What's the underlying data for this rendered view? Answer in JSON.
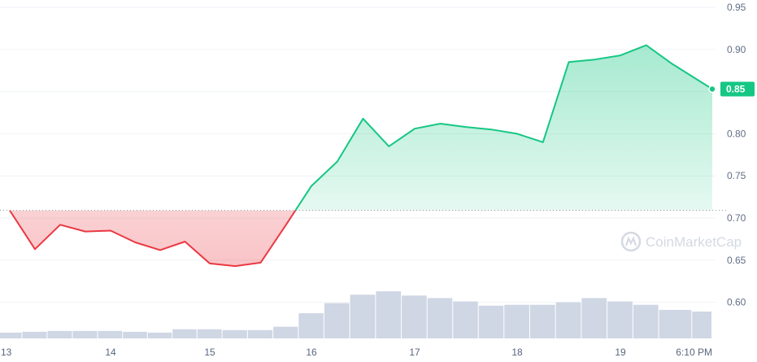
{
  "chart_data": {
    "type": "line",
    "title": "",
    "xlabel": "",
    "ylabel": "",
    "ylim": [
      0.55,
      0.96
    ],
    "y_ticks": [
      "0.95",
      "0.90",
      "0.85",
      "0.80",
      "0.75",
      "0.70",
      "0.65",
      "0.60"
    ],
    "x_ticks": [
      "13",
      "14",
      "15",
      "16",
      "17",
      "18",
      "19",
      "6:10 PM"
    ],
    "baseline": 0.709,
    "current_price": "0.85",
    "watermark": "CoinMarketCap",
    "grid": true,
    "colors": {
      "up": "#16c784",
      "down": "#ea3943",
      "volume": "#cfd6e4"
    },
    "x": [
      "13 00:00",
      "13 06:00",
      "13 12:00",
      "13 18:00",
      "14 00:00",
      "14 06:00",
      "14 12:00",
      "14 18:00",
      "15 00:00",
      "15 06:00",
      "15 12:00",
      "15 18:00",
      "16 00:00",
      "16 06:00",
      "16 12:00",
      "16 18:00",
      "17 00:00",
      "17 06:00",
      "17 12:00",
      "17 18:00",
      "18 00:00",
      "18 06:00",
      "18 12:00",
      "18 18:00",
      "19 00:00",
      "19 06:00",
      "19 12:00",
      "19 18:00"
    ],
    "series": [
      {
        "values": [
          0.709,
          0.663,
          0.692,
          0.684,
          0.685,
          0.671,
          0.662,
          0.672,
          0.646,
          0.643,
          0.647,
          0.692,
          0.738,
          0.767,
          0.818,
          0.785,
          0.806,
          0.812,
          0.808,
          0.805,
          0.8,
          0.79,
          0.885,
          0.888,
          0.893,
          0.905,
          0.883,
          0.853
        ]
      },
      {
        "values": [
          0.564,
          0.565,
          0.566,
          0.566,
          0.566,
          0.565,
          0.564,
          0.568,
          0.568,
          0.567,
          0.567,
          0.571,
          0.587,
          0.599,
          0.609,
          0.613,
          0.608,
          0.605,
          0.601,
          0.596,
          0.597,
          0.597,
          0.6,
          0.605,
          0.601,
          0.597,
          0.591,
          0.589
        ]
      }
    ]
  }
}
